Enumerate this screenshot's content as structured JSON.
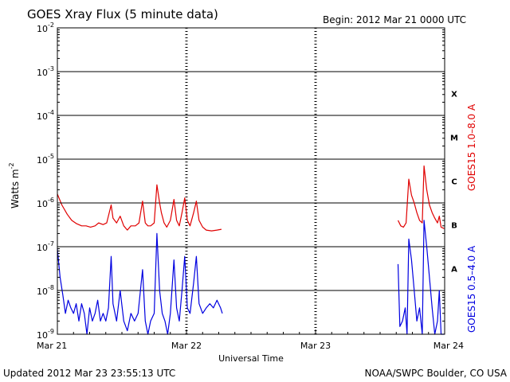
{
  "header": {
    "title": "GOES Xray Flux (5 minute data)",
    "begin": "Begin:  2012 Mar 21 0000 UTC"
  },
  "footer": {
    "updated": "Updated 2012 Mar 23 23:55:13 UTC",
    "source": "NOAA/SWPC Boulder, CO USA"
  },
  "chart_data": {
    "type": "line",
    "title": "GOES Xray Flux (5 minute data)",
    "xlabel": "Universal Time",
    "ylabel": "Watts m",
    "ylabel_exponent": "-2",
    "y_scale": "log",
    "ylim": [
      1e-09,
      0.01
    ],
    "xlim": [
      "2012-03-21T00:00",
      "2012-03-24T00:00"
    ],
    "x_ticks": [
      "Mar 21",
      "Mar 22",
      "Mar 23",
      "Mar 24"
    ],
    "y_ticks": [
      {
        "base": "10",
        "exp": "-9"
      },
      {
        "base": "10",
        "exp": "-8"
      },
      {
        "base": "10",
        "exp": "-7"
      },
      {
        "base": "10",
        "exp": "-6"
      },
      {
        "base": "10",
        "exp": "-5"
      },
      {
        "base": "10",
        "exp": "-4"
      },
      {
        "base": "10",
        "exp": "-3"
      },
      {
        "base": "10",
        "exp": "-2"
      }
    ],
    "flare_classes": [
      {
        "label": "A",
        "flux": 1e-08
      },
      {
        "label": "B",
        "flux": 1e-07
      },
      {
        "label": "C",
        "flux": 1e-06
      },
      {
        "label": "M",
        "flux": 1e-05
      },
      {
        "label": "X",
        "flux": 0.0001
      }
    ],
    "grid": "horizontal lines at decades, dashed vertical day separators",
    "series": [
      {
        "name": "GOES15 1.0–8.0 A",
        "color": "#e00000",
        "points": [
          [
            "2012-03-21T00:00",
            1.6e-06
          ],
          [
            "2012-03-21T00:50",
            9e-07
          ],
          [
            "2012-03-21T01:50",
            5.5e-07
          ],
          [
            "2012-03-21T02:40",
            4e-07
          ],
          [
            "2012-03-21T03:30",
            3.4e-07
          ],
          [
            "2012-03-21T04:30",
            3e-07
          ],
          [
            "2012-03-21T05:20",
            3e-07
          ],
          [
            "2012-03-21T06:10",
            2.8e-07
          ],
          [
            "2012-03-21T07:00",
            3e-07
          ],
          [
            "2012-03-21T07:40",
            3.5e-07
          ],
          [
            "2012-03-21T08:30",
            3.2e-07
          ],
          [
            "2012-03-21T09:10",
            3.5e-07
          ],
          [
            "2012-03-21T10:00",
            9e-07
          ],
          [
            "2012-03-21T10:20",
            4.5e-07
          ],
          [
            "2012-03-21T11:00",
            3.5e-07
          ],
          [
            "2012-03-21T11:40",
            5e-07
          ],
          [
            "2012-03-21T12:20",
            3e-07
          ],
          [
            "2012-03-21T13:00",
            2.4e-07
          ],
          [
            "2012-03-21T13:40",
            3e-07
          ],
          [
            "2012-03-21T14:30",
            3e-07
          ],
          [
            "2012-03-21T15:10",
            3.5e-07
          ],
          [
            "2012-03-21T15:50",
            1.1e-06
          ],
          [
            "2012-03-21T16:20",
            3.5e-07
          ],
          [
            "2012-03-21T16:50",
            3e-07
          ],
          [
            "2012-03-21T17:20",
            3e-07
          ],
          [
            "2012-03-21T18:00",
            3.5e-07
          ],
          [
            "2012-03-21T18:30",
            2.6e-06
          ],
          [
            "2012-03-21T19:00",
            1e-06
          ],
          [
            "2012-03-21T19:20",
            6e-07
          ],
          [
            "2012-03-21T19:50",
            3.5e-07
          ],
          [
            "2012-03-21T20:20",
            2.8e-07
          ],
          [
            "2012-03-21T21:00",
            4e-07
          ],
          [
            "2012-03-21T21:40",
            1.2e-06
          ],
          [
            "2012-03-21T22:10",
            4e-07
          ],
          [
            "2012-03-21T22:40",
            3e-07
          ],
          [
            "2012-03-21T23:10",
            6e-07
          ],
          [
            "2012-03-21T23:40",
            1.3e-06
          ],
          [
            "2012-03-22T00:10",
            4e-07
          ],
          [
            "2012-03-22T00:40",
            3e-07
          ],
          [
            "2012-03-22T01:20",
            6e-07
          ],
          [
            "2012-03-22T01:50",
            1.1e-06
          ],
          [
            "2012-03-22T02:20",
            4e-07
          ],
          [
            "2012-03-22T03:00",
            2.8e-07
          ],
          [
            "2012-03-22T03:40",
            2.4e-07
          ],
          [
            "2012-03-22T04:40",
            2.3e-07
          ],
          [
            "2012-03-22T05:40",
            2.4e-07
          ],
          [
            "2012-03-22T06:30",
            2.5e-07
          ],
          null,
          [
            "2012-03-23T15:20",
            4e-07
          ],
          [
            "2012-03-23T15:50",
            3e-07
          ],
          [
            "2012-03-23T16:20",
            2.8e-07
          ],
          [
            "2012-03-23T16:50",
            3.5e-07
          ],
          [
            "2012-03-23T17:20",
            3.5e-06
          ],
          [
            "2012-03-23T17:50",
            1.5e-06
          ],
          [
            "2012-03-23T18:20",
            1e-06
          ],
          [
            "2012-03-23T18:50",
            6e-07
          ],
          [
            "2012-03-23T19:20",
            4e-07
          ],
          [
            "2012-03-23T19:50",
            3.5e-07
          ],
          [
            "2012-03-23T20:10",
            7e-06
          ],
          [
            "2012-03-23T20:40",
            2e-06
          ],
          [
            "2012-03-23T21:10",
            9e-07
          ],
          [
            "2012-03-23T21:40",
            6e-07
          ],
          [
            "2012-03-23T22:10",
            4.5e-07
          ],
          [
            "2012-03-23T22:40",
            3.5e-07
          ],
          [
            "2012-03-23T23:00",
            5e-07
          ],
          [
            "2012-03-23T23:20",
            2.8e-07
          ],
          [
            "2012-03-23T23:55",
            2.6e-07
          ]
        ]
      },
      {
        "name": "GOES15 0.5–4.0 A",
        "color": "#0000e0",
        "points": [
          [
            "2012-03-21T00:00",
            9e-08
          ],
          [
            "2012-03-21T00:30",
            2e-08
          ],
          [
            "2012-03-21T01:00",
            8e-09
          ],
          [
            "2012-03-21T01:30",
            3e-09
          ],
          [
            "2012-03-21T02:00",
            6e-09
          ],
          [
            "2012-03-21T02:30",
            4e-09
          ],
          [
            "2012-03-21T03:00",
            3e-09
          ],
          [
            "2012-03-21T03:30",
            5e-09
          ],
          [
            "2012-03-21T04:00",
            2e-09
          ],
          [
            "2012-03-21T04:30",
            5e-09
          ],
          [
            "2012-03-21T05:00",
            3e-09
          ],
          [
            "2012-03-21T05:30",
            1e-09
          ],
          [
            "2012-03-21T06:00",
            4e-09
          ],
          [
            "2012-03-21T06:30",
            2e-09
          ],
          [
            "2012-03-21T07:00",
            3e-09
          ],
          [
            "2012-03-21T07:30",
            6e-09
          ],
          [
            "2012-03-21T08:00",
            2e-09
          ],
          [
            "2012-03-21T08:30",
            3e-09
          ],
          [
            "2012-03-21T09:00",
            2e-09
          ],
          [
            "2012-03-21T09:30",
            4e-09
          ],
          [
            "2012-03-21T10:00",
            6e-08
          ],
          [
            "2012-03-21T10:20",
            5e-09
          ],
          [
            "2012-03-21T11:00",
            2e-09
          ],
          [
            "2012-03-21T11:40",
            1e-08
          ],
          [
            "2012-03-21T12:20",
            2e-09
          ],
          [
            "2012-03-21T13:00",
            1.2e-09
          ],
          [
            "2012-03-21T13:40",
            3e-09
          ],
          [
            "2012-03-21T14:20",
            2e-09
          ],
          [
            "2012-03-21T15:00",
            3e-09
          ],
          [
            "2012-03-21T15:50",
            3e-08
          ],
          [
            "2012-03-21T16:20",
            2e-09
          ],
          [
            "2012-03-21T16:50",
            1e-09
          ],
          [
            "2012-03-21T17:20",
            2e-09
          ],
          [
            "2012-03-21T18:00",
            3e-09
          ],
          [
            "2012-03-21T18:30",
            2e-07
          ],
          [
            "2012-03-21T19:00",
            1e-08
          ],
          [
            "2012-03-21T19:30",
            3e-09
          ],
          [
            "2012-03-21T20:00",
            2e-09
          ],
          [
            "2012-03-21T20:30",
            1e-09
          ],
          [
            "2012-03-21T21:00",
            3e-09
          ],
          [
            "2012-03-21T21:40",
            5e-08
          ],
          [
            "2012-03-21T22:10",
            4e-09
          ],
          [
            "2012-03-21T22:40",
            2e-09
          ],
          [
            "2012-03-21T23:10",
            1e-08
          ],
          [
            "2012-03-21T23:40",
            6e-08
          ],
          [
            "2012-03-22T00:10",
            4e-09
          ],
          [
            "2012-03-22T00:40",
            3e-09
          ],
          [
            "2012-03-22T01:20",
            1.5e-08
          ],
          [
            "2012-03-22T01:50",
            6e-08
          ],
          [
            "2012-03-22T02:20",
            5e-09
          ],
          [
            "2012-03-22T03:00",
            3e-09
          ],
          [
            "2012-03-22T03:40",
            4e-09
          ],
          [
            "2012-03-22T04:20",
            5e-09
          ],
          [
            "2012-03-22T05:00",
            4e-09
          ],
          [
            "2012-03-22T05:40",
            6e-09
          ],
          [
            "2012-03-22T06:20",
            4e-09
          ],
          [
            "2012-03-22T06:40",
            3e-09
          ],
          null,
          [
            "2012-03-23T15:20",
            4e-08
          ],
          [
            "2012-03-23T15:40",
            1.5e-09
          ],
          [
            "2012-03-23T16:10",
            2e-09
          ],
          [
            "2012-03-23T16:40",
            4e-09
          ],
          [
            "2012-03-23T17:00",
            1e-09
          ],
          [
            "2012-03-23T17:20",
            1.5e-07
          ],
          [
            "2012-03-23T17:50",
            5e-08
          ],
          [
            "2012-03-23T18:20",
            1e-08
          ],
          [
            "2012-03-23T18:50",
            2e-09
          ],
          [
            "2012-03-23T19:20",
            4e-09
          ],
          [
            "2012-03-23T19:50",
            1e-09
          ],
          [
            "2012-03-23T20:10",
            4e-07
          ],
          [
            "2012-03-23T20:40",
            1e-07
          ],
          [
            "2012-03-23T21:10",
            2e-08
          ],
          [
            "2012-03-23T21:40",
            4e-09
          ],
          [
            "2012-03-23T22:10",
            1e-09
          ],
          [
            "2012-03-23T22:40",
            2e-09
          ],
          [
            "2012-03-23T23:00",
            1e-08
          ],
          [
            "2012-03-23T23:20",
            1e-09
          ],
          [
            "2012-03-23T23:55",
            1e-09
          ]
        ]
      }
    ]
  }
}
